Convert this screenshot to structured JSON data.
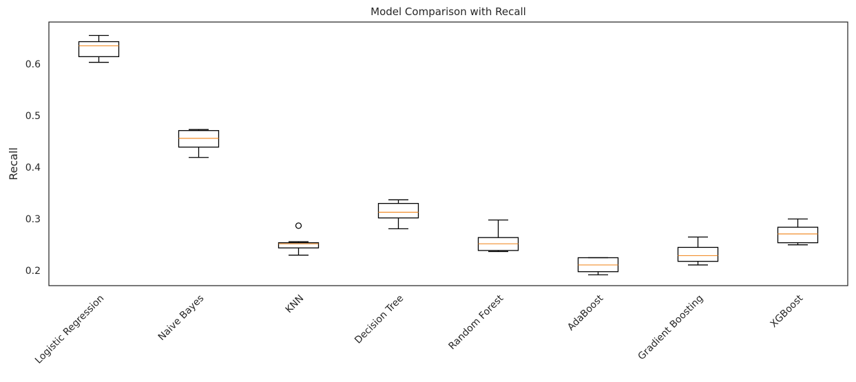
{
  "chart_data": {
    "type": "boxplot",
    "title": "Model Comparison with Recall",
    "xlabel": "",
    "ylabel": "Recall",
    "ylim": [
      0.171,
      0.681
    ],
    "yticks": [
      0.2,
      0.3,
      0.4,
      0.5,
      0.6
    ],
    "ytick_labels": [
      "0.2",
      "0.3",
      "0.4",
      "0.5",
      "0.6"
    ],
    "grid": false,
    "categories": [
      "Logistic Regression",
      "Naive Bayes",
      "KNN",
      "Decision Tree",
      "Random Forest",
      "AdaBoost",
      "Gradient Boosting",
      "XGBoost"
    ],
    "boxes": [
      {
        "whisker_low": 0.603,
        "q1": 0.614,
        "median": 0.635,
        "q3": 0.643,
        "whisker_high": 0.655,
        "outliers": []
      },
      {
        "whisker_low": 0.419,
        "q1": 0.439,
        "median": 0.456,
        "q3": 0.471,
        "whisker_high": 0.473,
        "outliers": []
      },
      {
        "whisker_low": 0.23,
        "q1": 0.244,
        "median": 0.252,
        "q3": 0.254,
        "whisker_high": 0.256,
        "outliers": [
          0.287
        ]
      },
      {
        "whisker_low": 0.281,
        "q1": 0.302,
        "median": 0.313,
        "q3": 0.33,
        "whisker_high": 0.337,
        "outliers": []
      },
      {
        "whisker_low": 0.237,
        "q1": 0.239,
        "median": 0.252,
        "q3": 0.264,
        "whisker_high": 0.298,
        "outliers": []
      },
      {
        "whisker_low": 0.192,
        "q1": 0.198,
        "median": 0.211,
        "q3": 0.225,
        "whisker_high": 0.225,
        "outliers": []
      },
      {
        "whisker_low": 0.211,
        "q1": 0.218,
        "median": 0.229,
        "q3": 0.245,
        "whisker_high": 0.265,
        "outliers": []
      },
      {
        "whisker_low": 0.25,
        "q1": 0.254,
        "median": 0.271,
        "q3": 0.284,
        "whisker_high": 0.3,
        "outliers": []
      }
    ],
    "colors": {
      "box": "#000000",
      "median": "#f28e2b",
      "axes": "#262626",
      "text": "#262626"
    }
  }
}
